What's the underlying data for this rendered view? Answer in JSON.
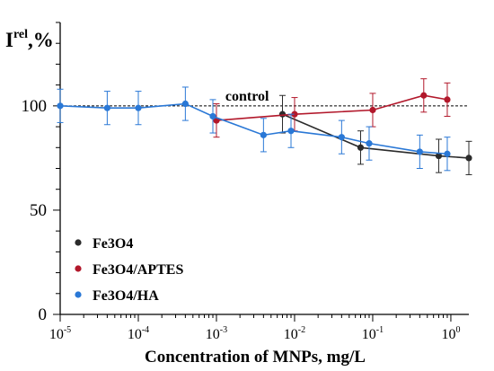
{
  "chart_data": {
    "type": "line",
    "ylabel_main": "I",
    "ylabel_sup": "rel",
    "ylabel_suffix": ",%",
    "xlabel": "Concentration of MNPs, mg/L",
    "x_scale": "log",
    "xlim": [
      1e-05,
      1.7
    ],
    "ylim": [
      0,
      140
    ],
    "y_ticks": [
      0,
      50,
      100
    ],
    "x_ticks": [
      {
        "value": 1e-05,
        "base": "10",
        "exp": "-5"
      },
      {
        "value": 0.0001,
        "base": "10",
        "exp": "-4"
      },
      {
        "value": 0.001,
        "base": "10",
        "exp": "-3"
      },
      {
        "value": 0.01,
        "base": "10",
        "exp": "-2"
      },
      {
        "value": 0.1,
        "base": "10",
        "exp": "-1"
      },
      {
        "value": 1,
        "base": "10",
        "exp": "0"
      }
    ],
    "control": {
      "label": "control",
      "y": 100
    },
    "legend_position": "left",
    "series": [
      {
        "name": "Fe3O4",
        "color": "#2b2b2b",
        "x": [
          0.007,
          0.07,
          0.7,
          1.7
        ],
        "y": [
          96,
          80,
          76,
          75
        ],
        "err": [
          9,
          8,
          8,
          8
        ]
      },
      {
        "name": "Fe3O4/APTES",
        "color": "#b2182b",
        "x": [
          0.001,
          0.01,
          0.1,
          0.45,
          0.9
        ],
        "y": [
          93,
          96,
          98,
          105,
          103
        ],
        "err": [
          8,
          8,
          8,
          8,
          8
        ]
      },
      {
        "name": "Fe3O4/HA",
        "color": "#2a78d6",
        "x": [
          1e-05,
          4e-05,
          0.0001,
          0.0004,
          0.0009,
          0.004,
          0.009,
          0.04,
          0.09,
          0.4,
          0.9
        ],
        "y": [
          100,
          99,
          99,
          101,
          95,
          86,
          88,
          85,
          82,
          78,
          77
        ],
        "err": [
          8,
          8,
          8,
          8,
          8,
          8,
          8,
          8,
          8,
          8,
          8
        ]
      }
    ]
  }
}
